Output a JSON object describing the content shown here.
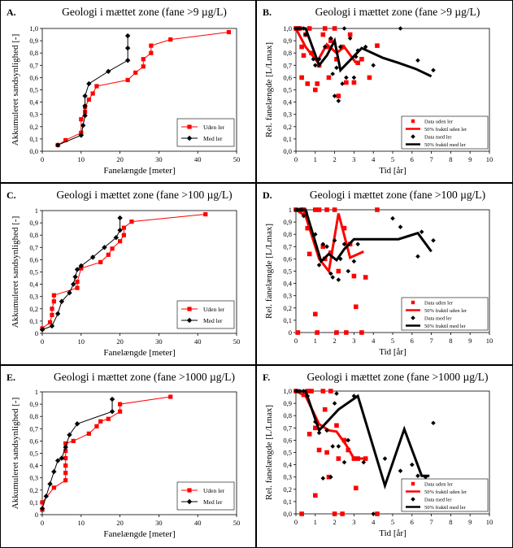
{
  "chart_data": [
    {
      "panel": "A.",
      "type": "line",
      "title": "Geologi i mættet zone (fane >9 µg/L)",
      "xlabel": "Fanelængde [meter]",
      "ylabel": "Akkumuleret sandsynlighed [-]",
      "xlim": [
        0,
        50
      ],
      "ylim": [
        0,
        1.0
      ],
      "xticks": [
        "0",
        "10",
        "20",
        "30",
        "40",
        "50"
      ],
      "yticks": [
        "0,0",
        "0,1",
        "0,2",
        "0,3",
        "0,4",
        "0,5",
        "0,6",
        "0,7",
        "0,8",
        "0,9",
        "1,0"
      ],
      "legend": [
        "Uden ler",
        "Med ler"
      ],
      "series": [
        {
          "name": "Uden ler",
          "color": "#ff0000",
          "marker": "square",
          "x": [
            4,
            6,
            10,
            10,
            11,
            11,
            12,
            13,
            14,
            22,
            24,
            26,
            26,
            28,
            28,
            33,
            48
          ],
          "y": [
            0.05,
            0.09,
            0.15,
            0.26,
            0.32,
            0.36,
            0.42,
            0.47,
            0.53,
            0.58,
            0.64,
            0.69,
            0.75,
            0.8,
            0.86,
            0.91,
            0.97
          ]
        },
        {
          "name": "Med ler",
          "color": "#000000",
          "marker": "diamond",
          "x": [
            4,
            10,
            10.5,
            11,
            11,
            11,
            12,
            17,
            22,
            22,
            22
          ],
          "y": [
            0.05,
            0.13,
            0.21,
            0.29,
            0.37,
            0.45,
            0.55,
            0.65,
            0.74,
            0.84,
            0.94
          ]
        }
      ]
    },
    {
      "panel": "B.",
      "type": "scatter",
      "title": "Geologi i mættet zone (fane >9 µg/L)",
      "xlabel": "Tid [år]",
      "ylabel": "Rel. fanelængde [L/Lmax]",
      "xlim": [
        0,
        10
      ],
      "ylim": [
        0,
        1.0
      ],
      "xticks": [
        "0",
        "1",
        "2",
        "3",
        "4",
        "5",
        "6",
        "7",
        "8",
        "9",
        "10"
      ],
      "yticks": [
        "0,0",
        "0,1",
        "0,2",
        "0,3",
        "0,4",
        "0,5",
        "0,6",
        "0,7",
        "0,8",
        "0,9",
        "1,0"
      ],
      "legend": [
        "Data uden ler",
        "50% fraktil uden ler",
        "Data med ler",
        "50% fraktil med ler"
      ],
      "series": [
        {
          "name": "Data uden ler",
          "color": "#ff0000",
          "marker": "square",
          "x": [
            0,
            0.2,
            0.3,
            0.3,
            0.4,
            0.5,
            0.6,
            0.7,
            0.8,
            1,
            1.1,
            1.2,
            1.4,
            1.5,
            1.6,
            1.7,
            1.8,
            2,
            2.1,
            2.2,
            2.4,
            2.6,
            2.8,
            3,
            3.2,
            3.4,
            3.8,
            4.2
          ],
          "y": [
            1,
            1,
            0.85,
            0.6,
            0.78,
            0.95,
            0.55,
            1,
            0.8,
            0.5,
            0.55,
            0.7,
            0.95,
            1,
            0.85,
            0.6,
            0.9,
            1,
            0.75,
            0.45,
            0.85,
            0.56,
            0.95,
            0.56,
            0.72,
            0.75,
            0.6,
            0.86
          ]
        },
        {
          "name": "50% fraktil uden ler",
          "color": "#ff0000",
          "marker": "line",
          "x": [
            0,
            0.5,
            1.1,
            1.6,
            2.1,
            2.5,
            3.1
          ],
          "y": [
            1,
            0.85,
            0.73,
            0.87,
            0.8,
            0.85,
            0.72
          ]
        },
        {
          "name": "Data med ler",
          "color": "#000000",
          "marker": "diamond",
          "x": [
            0,
            0.1,
            0.2,
            0.4,
            0.5,
            1,
            1.2,
            1.5,
            1.8,
            2,
            2.1,
            2.2,
            2.3,
            2.5,
            2.8,
            3,
            3.2,
            3.6,
            4,
            5.4,
            6.3,
            7.1,
            1.9,
            2.4,
            0.9,
            3.1,
            2.6
          ],
          "y": [
            1,
            1,
            1,
            1,
            0.95,
            0.7,
            0.75,
            0.85,
            0.92,
            0.45,
            0.68,
            0.41,
            0.85,
            1,
            0.92,
            0.6,
            0.82,
            0.85,
            0.7,
            1,
            0.74,
            0.66,
            0.63,
            0.55,
            0.75,
            0.77,
            0.6
          ]
        },
        {
          "name": "50% fraktil med ler",
          "color": "#000000",
          "marker": "line",
          "x": [
            0,
            0.5,
            1.2,
            1.6,
            2.0,
            2.3,
            3.4,
            4.5,
            5.3,
            6.2,
            7.0
          ],
          "y": [
            1,
            1,
            0.7,
            0.78,
            0.9,
            0.66,
            0.84,
            0.76,
            0.72,
            0.67,
            0.61
          ]
        }
      ]
    },
    {
      "panel": "C.",
      "type": "line",
      "title": "Geologi i mættet zone (fane >100 µg/L)",
      "xlabel": "Fanelængde [meter]",
      "ylabel": "Akkumuleret sandsynlighed [-]",
      "xlim": [
        0,
        50
      ],
      "ylim": [
        0,
        1.0
      ],
      "xticks": [
        "0",
        "10",
        "20",
        "30",
        "40",
        "50"
      ],
      "yticks": [
        "0",
        "0,1",
        "0,2",
        "0,3",
        "0,4",
        "0,5",
        "0,6",
        "0,7",
        "0,8",
        "0,9",
        "1"
      ],
      "legend": [
        "Uden ler",
        "Med ler"
      ],
      "series": [
        {
          "name": "Uden ler",
          "color": "#ff0000",
          "marker": "square",
          "x": [
            0,
            2,
            2.5,
            2.5,
            3,
            3,
            9,
            9,
            10,
            15,
            17,
            18,
            20,
            21,
            21,
            23,
            42
          ],
          "y": [
            0.04,
            0.09,
            0.15,
            0.2,
            0.26,
            0.31,
            0.37,
            0.42,
            0.53,
            0.58,
            0.64,
            0.69,
            0.75,
            0.8,
            0.86,
            0.91,
            0.97
          ]
        },
        {
          "name": "Med ler",
          "color": "#000000",
          "marker": "diamond",
          "x": [
            0,
            2.5,
            4,
            5,
            7,
            8,
            8.5,
            9,
            10,
            13,
            16,
            19,
            20,
            20
          ],
          "y": [
            0.03,
            0.06,
            0.16,
            0.26,
            0.33,
            0.4,
            0.46,
            0.52,
            0.55,
            0.62,
            0.7,
            0.78,
            0.84,
            0.94
          ]
        }
      ]
    },
    {
      "panel": "D.",
      "type": "scatter",
      "title": "Geologi i mættet zone (fane >100 µg/L)",
      "xlabel": "Tid [år]",
      "ylabel": "Rel. fanelængde [L/Lmax]",
      "xlim": [
        0,
        10
      ],
      "ylim": [
        0,
        1.0
      ],
      "xticks": [
        "0",
        "1",
        "2",
        "3",
        "4",
        "5",
        "6",
        "7",
        "8",
        "9",
        "10"
      ],
      "yticks": [
        "0",
        "0,1",
        "0,2",
        "0,3",
        "0,4",
        "0,5",
        "0,6",
        "0,7",
        "0,8",
        "0,9",
        "1"
      ],
      "legend": [
        "Data uden ler",
        "50% fraktil uden ler",
        "Data med ler",
        "50% fraktil med ler"
      ],
      "series": [
        {
          "name": "Data uden ler",
          "color": "#ff0000",
          "marker": "square",
          "x": [
            0,
            0.1,
            0.3,
            0.4,
            0.5,
            0.6,
            0.7,
            1,
            1,
            1.1,
            1.2,
            1.4,
            1.5,
            1.6,
            1.8,
            2,
            2.1,
            2.2,
            2.5,
            2.6,
            2.8,
            3,
            3.1,
            3.4,
            3.6,
            4.2
          ],
          "y": [
            1,
            0.0,
            1,
            1,
            0.97,
            0.85,
            0.64,
            1,
            0.15,
            0.0,
            1,
            0.7,
            0.6,
            1,
            0.65,
            1,
            0.0,
            0.5,
            0.85,
            0.0,
            0.72,
            0.46,
            0.21,
            0.0,
            0.45,
            1
          ]
        },
        {
          "name": "50% fraktil uden ler",
          "color": "#ff0000",
          "marker": "line",
          "x": [
            0,
            0.5,
            1.2,
            1.7,
            2.2,
            2.8,
            3.5
          ],
          "y": [
            1,
            0.95,
            0.6,
            0.5,
            0.97,
            0.61,
            0.66
          ]
        },
        {
          "name": "Data med ler",
          "color": "#000000",
          "marker": "diamond",
          "x": [
            0,
            0.1,
            0.2,
            0.3,
            0.4,
            1,
            1.2,
            1.4,
            1.6,
            1.8,
            2,
            2.2,
            2.5,
            2.7,
            3,
            3.2,
            5,
            5.4,
            6.3,
            6.5,
            7.1,
            2.3,
            1.9
          ],
          "y": [
            1,
            1,
            1,
            1,
            0.95,
            0.8,
            0.55,
            0.72,
            0.7,
            0.48,
            0.75,
            0.43,
            0.72,
            0.5,
            0.58,
            0.72,
            0.93,
            0.86,
            0.62,
            0.82,
            0.75,
            0.6,
            0.45
          ]
        },
        {
          "name": "50% fraktil med ler",
          "color": "#000000",
          "marker": "line",
          "x": [
            0,
            0.5,
            1.3,
            1.7,
            2.1,
            2.5,
            3.0,
            4.5,
            5.3,
            6.3,
            7.0
          ],
          "y": [
            1,
            1,
            0.58,
            0.64,
            0.59,
            0.68,
            0.76,
            0.76,
            0.76,
            0.81,
            0.66
          ]
        }
      ]
    },
    {
      "panel": "E.",
      "type": "line",
      "title": "Geologi i mættet zone (fane >1000 µg/L)",
      "xlabel": "Fanelængde [meter]",
      "ylabel": "Akkumuleret sandsynlighed [-]",
      "xlim": [
        0,
        50
      ],
      "ylim": [
        0,
        1.0
      ],
      "xticks": [
        "0",
        "10",
        "20",
        "30",
        "40",
        "50"
      ],
      "yticks": [
        "0",
        "0,1",
        "0,2",
        "0,3",
        "0,4",
        "0,5",
        "0,6",
        "0,7",
        "0,8",
        "0,9",
        "1"
      ],
      "legend": [
        "Uden ler",
        "Med ler"
      ],
      "series": [
        {
          "name": "Uden ler",
          "color": "#ff0000",
          "marker": "square",
          "x": [
            0,
            0,
            3,
            6,
            6,
            6,
            6,
            6,
            6,
            8,
            12,
            14,
            15,
            17,
            20,
            20,
            33
          ],
          "y": [
            0.04,
            0.1,
            0.22,
            0.28,
            0.34,
            0.4,
            0.46,
            0.52,
            0.58,
            0.6,
            0.66,
            0.72,
            0.76,
            0.78,
            0.84,
            0.9,
            0.96
          ]
        },
        {
          "name": "Med ler",
          "color": "#000000",
          "marker": "diamond",
          "x": [
            0,
            1,
            2,
            3,
            4,
            5,
            6,
            7,
            9,
            18,
            18
          ],
          "y": [
            0.05,
            0.15,
            0.25,
            0.35,
            0.44,
            0.46,
            0.55,
            0.65,
            0.74,
            0.84,
            0.94
          ]
        }
      ]
    },
    {
      "panel": "F.",
      "type": "scatter",
      "title": "Geologi i mættet zone (fane >1000 µg/L)",
      "xlabel": "Tid [år]",
      "ylabel": "Rel. fanelængde [L/Lmax]",
      "xlim": [
        0,
        10
      ],
      "ylim": [
        0,
        1.0
      ],
      "xticks": [
        "0",
        "1",
        "2",
        "3",
        "4",
        "5",
        "6",
        "7",
        "8",
        "9",
        "10"
      ],
      "yticks": [
        "0,0",
        "0,1",
        "0,2",
        "0,3",
        "0,4",
        "0,5",
        "0,6",
        "0,7",
        "0,8",
        "0,9",
        "1,0"
      ],
      "legend": [
        "Data uden ler",
        "50% fraktil uden ler",
        "Data med ler",
        "50% fraktil med ler"
      ],
      "series": [
        {
          "name": "Data uden ler",
          "color": "#ff0000",
          "marker": "square",
          "x": [
            0,
            0.3,
            0.4,
            0.6,
            0.7,
            0.8,
            1,
            1,
            1.2,
            1.4,
            1.5,
            1.6,
            1.7,
            1.8,
            2,
            2.1,
            2.2,
            2.4,
            2.5,
            2.7,
            3,
            3.1,
            3.2,
            3.6,
            4.2
          ],
          "y": [
            1,
            0.0,
            0.97,
            1,
            0.65,
            1,
            0.15,
            0.7,
            0.52,
            1,
            0.85,
            0.5,
            0.3,
            1,
            0.0,
            0.72,
            0.45,
            0.0,
            0.6,
            0.52,
            0.45,
            0.21,
            0.45,
            0.45,
            0.0
          ]
        },
        {
          "name": "50% fraktil uden ler",
          "color": "#ff0000",
          "marker": "line",
          "x": [
            0,
            0.5,
            1.2,
            1.7,
            2.1,
            2.6,
            3.0,
            3.6
          ],
          "y": [
            1,
            0.96,
            0.73,
            0.68,
            0.67,
            0.56,
            0.45,
            0.45
          ]
        },
        {
          "name": "Data med ler",
          "color": "#000000",
          "marker": "diamond",
          "x": [
            0,
            0.1,
            0.2,
            0.4,
            0.6,
            1,
            1.2,
            1.4,
            1.6,
            1.8,
            2,
            2.2,
            2.5,
            2.7,
            3,
            3.5,
            4,
            4.6,
            5.4,
            6,
            6.3,
            6.7,
            7.1,
            2.1,
            1.9
          ],
          "y": [
            1,
            1,
            1,
            1,
            0.96,
            0.75,
            0.66,
            0.29,
            0.68,
            0.3,
            0.9,
            0.55,
            0.42,
            0.6,
            0.96,
            0.42,
            0.0,
            0.45,
            0.35,
            0.4,
            0.31,
            0.3,
            0.74,
            0.98,
            0.55
          ]
        },
        {
          "name": "50% fraktil med ler",
          "color": "#000000",
          "marker": "line",
          "x": [
            0,
            0.5,
            1.2,
            2.2,
            3.2,
            4.6,
            5.6,
            6.5,
            6.9
          ],
          "y": [
            1,
            1,
            0.68,
            0.85,
            0.96,
            0.23,
            0.69,
            0.31,
            0.31
          ]
        }
      ]
    }
  ]
}
